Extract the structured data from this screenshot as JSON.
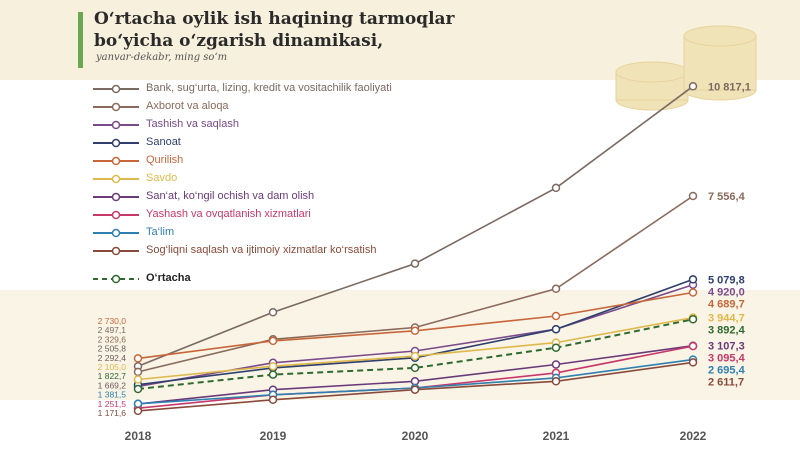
{
  "header": {
    "title_line1": "O‘rtacha oylik ish haqining tarmoqlar",
    "title_line2": "bo‘yicha o‘zgarish dinamikasi,",
    "subtitle": "yanvar-dekabr, ming so‘m"
  },
  "colors": {
    "band": "#f7f0dc",
    "accent": "#6aa84f",
    "coin": "#f1e3b8"
  },
  "icons": {
    "decor": "coin-stack-icon"
  },
  "chart_data": {
    "type": "line",
    "x": [
      "2018",
      "2019",
      "2020",
      "2021",
      "2022"
    ],
    "series": [
      {
        "name": "Bank, sug‘urta, lizing, kredit va vositachilik faoliyati",
        "color": "#7a6a62",
        "values": [
          2497.1,
          4100,
          5550,
          7800,
          10817.1
        ],
        "end_label": "10 817,1",
        "start_label": "2 497,1"
      },
      {
        "name": "Axborot va aloqa",
        "color": "#8a6a5a",
        "values": [
          2329.6,
          3300,
          3650,
          4800,
          7556.4
        ],
        "end_label": "7 556,4",
        "start_label": "2 329,6"
      },
      {
        "name": "Tashish va saqlash",
        "color": "#7a4a8a",
        "values": [
          1900,
          2600,
          2950,
          3600,
          4920.0
        ],
        "end_label": "4 920,0",
        "start_label": ""
      },
      {
        "name": "Sanoat",
        "color": "#2e3f6e",
        "values": [
          1950,
          2450,
          2750,
          3600,
          5079.8
        ],
        "end_label": "5 079,8",
        "start_label": ""
      },
      {
        "name": "Qurilish",
        "color": "#c8663a",
        "values": [
          2730.0,
          3250,
          3550,
          3990,
          4689.7
        ],
        "end_label": "4 689,7",
        "start_label": "2 730,0"
      },
      {
        "name": "Savdo",
        "color": "#e0b84a",
        "values": [
          2105.0,
          2500,
          2800,
          3200,
          3944.7
        ],
        "end_label": "3 944,7",
        "start_label": "2 105,0"
      },
      {
        "name": "San‘at, ko‘ngil ochish va dam olish",
        "color": "#6a3a7a",
        "values": [
          1380,
          1800,
          2050,
          2550,
          3107.3
        ],
        "end_label": "3 107,3",
        "start_label": ""
      },
      {
        "name": "Yashash va ovqatlanish xizmatlari",
        "color": "#c8386a",
        "values": [
          1251.5,
          1650,
          1850,
          2300,
          3095.4
        ],
        "end_label": "3 095,4",
        "start_label": "1 251,5"
      },
      {
        "name": "Ta‘lim",
        "color": "#2f7fb0",
        "values": [
          1381.5,
          1650,
          1850,
          2150,
          2695.4
        ],
        "end_label": "2 695,4",
        "start_label": "1 381,5"
      },
      {
        "name": "Sog‘liqni saqlash va ijtimoiy xizmatlar ko‘rsatish",
        "color": "#8a4a3a",
        "values": [
          1171.6,
          1500,
          1800,
          2050,
          2611.7
        ],
        "end_label": "2 611,7",
        "start_label": "1 171,6"
      },
      {
        "name": "O‘rtacha",
        "color": "#2f6a2f",
        "values": [
          1822.7,
          2250,
          2450,
          3050,
          3892.4
        ],
        "end_label": "3 892,4",
        "start_label": "1 822,7",
        "dashed": true
      }
    ],
    "extra_start_labels": [
      "2 505,8",
      "2 292,4",
      "1 669,2"
    ],
    "ylim": [
      900,
      11600
    ],
    "legend_position": "top-left"
  }
}
